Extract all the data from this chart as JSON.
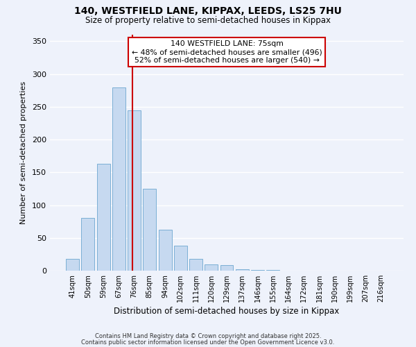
{
  "title_line1": "140, WESTFIELD LANE, KIPPAX, LEEDS, LS25 7HU",
  "title_line2": "Size of property relative to semi-detached houses in Kippax",
  "xlabel": "Distribution of semi-detached houses by size in Kippax",
  "ylabel": "Number of semi-detached properties",
  "categories": [
    "41sqm",
    "50sqm",
    "59sqm",
    "67sqm",
    "76sqm",
    "85sqm",
    "94sqm",
    "102sqm",
    "111sqm",
    "120sqm",
    "129sqm",
    "137sqm",
    "146sqm",
    "155sqm",
    "164sqm",
    "172sqm",
    "181sqm",
    "190sqm",
    "199sqm",
    "207sqm",
    "216sqm"
  ],
  "values": [
    18,
    80,
    163,
    280,
    245,
    125,
    63,
    38,
    18,
    10,
    8,
    2,
    1,
    1,
    0,
    0,
    0,
    0,
    0,
    0,
    0
  ],
  "bar_color": "#c6d9f0",
  "bar_edge_color": "#7bafd4",
  "vline_x": 3.88,
  "vline_color": "#cc0000",
  "ylim": [
    0,
    360
  ],
  "yticks": [
    0,
    50,
    100,
    150,
    200,
    250,
    300,
    350
  ],
  "annotation_title": "140 WESTFIELD LANE: 75sqm",
  "annotation_line1": "← 48% of semi-detached houses are smaller (496)",
  "annotation_line2": "52% of semi-detached houses are larger (540) →",
  "annotation_box_color": "#ffffff",
  "annotation_box_edge": "#cc0000",
  "footer_line1": "Contains HM Land Registry data © Crown copyright and database right 2025.",
  "footer_line2": "Contains public sector information licensed under the Open Government Licence v3.0.",
  "background_color": "#eef2fb",
  "grid_color": "#ffffff"
}
